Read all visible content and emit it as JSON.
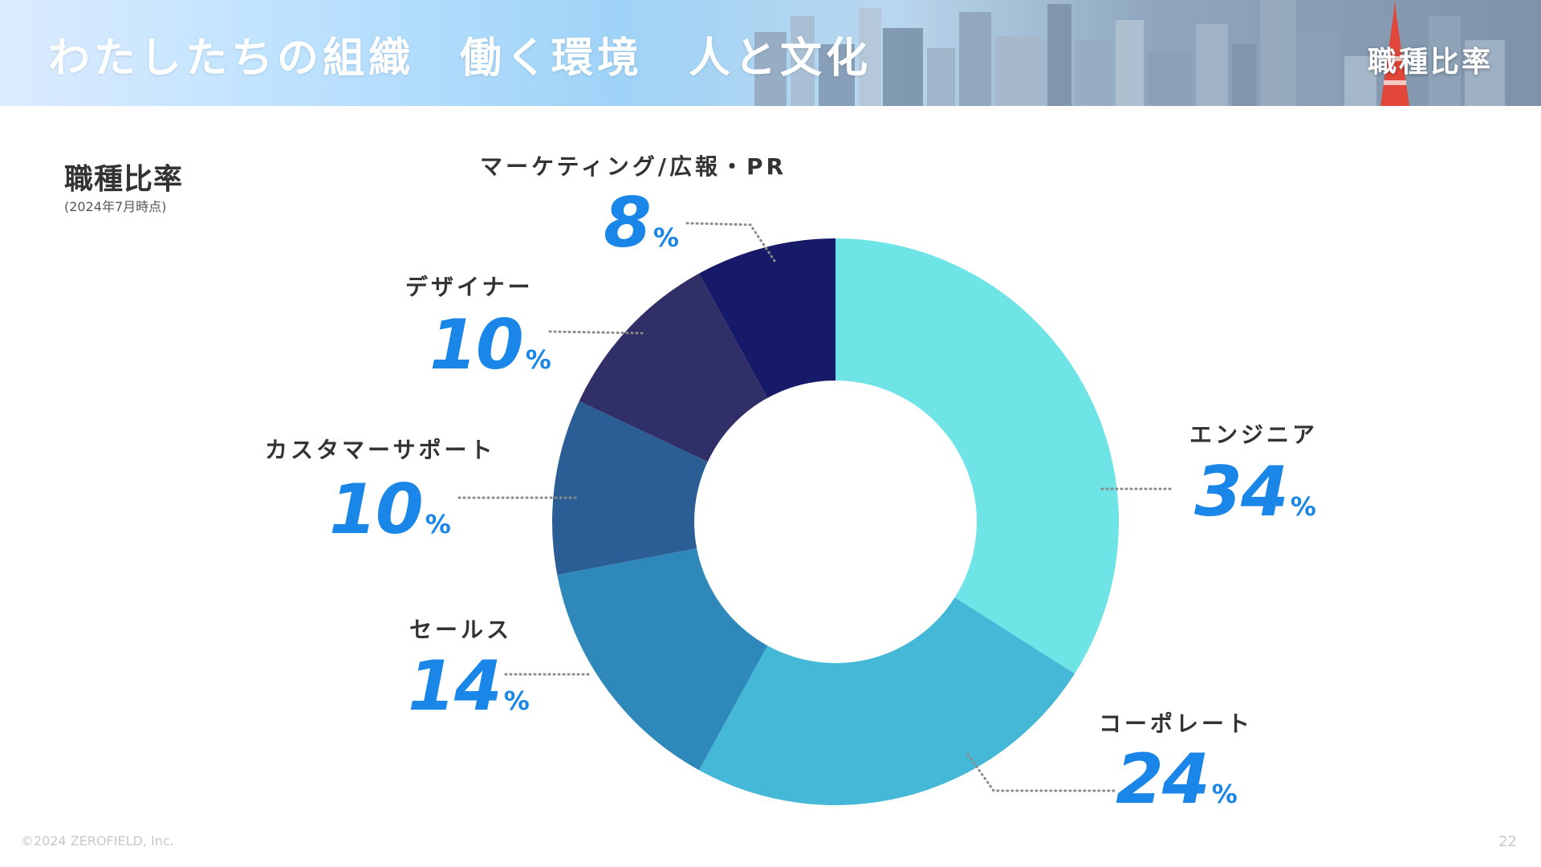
{
  "header": {
    "title": "わたしたちの組織　働く環境　人と文化",
    "section": "職種比率"
  },
  "page": {
    "title": "職種比率",
    "subtitle": "(2024年7月時点)"
  },
  "chart_data": {
    "type": "pie",
    "title": "職種比率",
    "subtitle": "(2024年7月時点)",
    "slices": [
      {
        "label": "エンジニア",
        "value": 34,
        "display": "34",
        "color": "#6fe4e6"
      },
      {
        "label": "コーポレート",
        "value": 24,
        "display": "24",
        "color": "#44b8d6"
      },
      {
        "label": "セールス",
        "value": 14,
        "display": "14",
        "color": "#2e89ba"
      },
      {
        "label": "カスタマーサポート",
        "value": 10,
        "display": "10",
        "color": "#2c5e96"
      },
      {
        "label": "デザイナー",
        "value": 10,
        "display": "10",
        "color": "#302f68"
      },
      {
        "label": "マーケティング/広報・PR",
        "value": 8,
        "display": "8",
        "color": "#161a68"
      }
    ],
    "unit": "%",
    "hole": "donut",
    "accent_color": "#1a86e8"
  },
  "footer": {
    "copyright": "©2024 ZEROFIELD, Inc.",
    "page_number": "22"
  }
}
